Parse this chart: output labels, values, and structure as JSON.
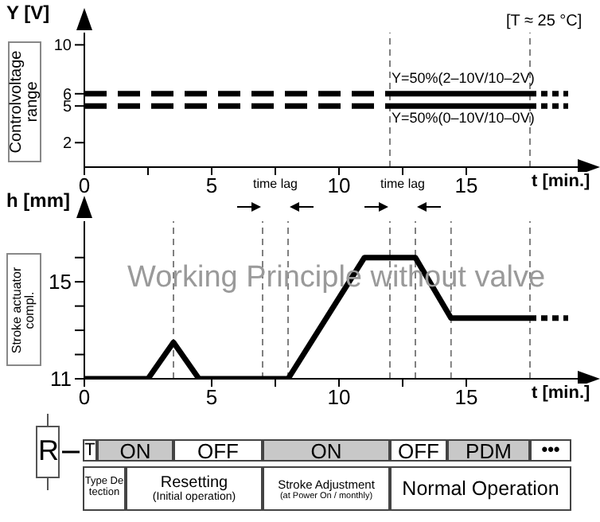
{
  "chart_data": [
    {
      "type": "line",
      "xlabel": "t [min.]",
      "ylabel": "Y [V]",
      "annotations": [
        "[T ≈ 25 °C]",
        "Controlvoltage range",
        "Y=50%(2–10V/10–2V)",
        "Y=50%(0–10V/10–0V)"
      ],
      "xlim": [
        0,
        19.5
      ],
      "xticks": [
        0,
        {
          "value": 2.5,
          "label": null
        },
        5,
        {
          "value": 7.5,
          "label": null
        },
        10,
        {
          "value": 12.5,
          "label": null
        },
        15
      ],
      "ylim": [
        0,
        11
      ],
      "yticks": [
        2,
        5,
        6,
        10
      ],
      "ref_lines": [
        {
          "axis": "x",
          "value": 12,
          "color": "#808080",
          "line_style": "dotted"
        },
        {
          "axis": "x",
          "value": 17.5,
          "color": "#808080",
          "line_style": "dotted"
        }
      ],
      "series": [
        {
          "color": "#000000",
          "line_style": "dashed",
          "x": [
            0,
            12
          ],
          "values": [
            6,
            6
          ]
        },
        {
          "color": "#000000",
          "line_style": "solid",
          "x": [
            12,
            17.5
          ],
          "values": [
            6,
            6
          ]
        },
        {
          "color": "#000000",
          "line_style": "dotted",
          "x": [
            17.5,
            19
          ],
          "values": [
            6,
            6
          ]
        },
        {
          "color": "#000000",
          "line_style": "dashed",
          "x": [
            0,
            12
          ],
          "values": [
            5,
            5
          ]
        },
        {
          "color": "#000000",
          "line_style": "solid",
          "x": [
            12,
            17.5
          ],
          "values": [
            5,
            5
          ]
        },
        {
          "color": "#000000",
          "line_style": "dotted",
          "x": [
            17.5,
            19
          ],
          "values": [
            5,
            5
          ]
        }
      ]
    },
    {
      "type": "line",
      "title": "Working Principle without valve",
      "xlabel": "t [min.]",
      "ylabel": "h [mm]",
      "annotations": [
        "Stroke actuator compl.",
        "time lag",
        "time lag",
        "R",
        "T",
        "ON",
        "OFF",
        "ON",
        "OFF",
        "PDM",
        "•••",
        "Type Detection",
        "Resetting",
        "(Initial operation)",
        "Stroke Adjustment",
        "(at Power On / monthly)",
        "Normal Operation"
      ],
      "xlim": [
        0,
        19.5
      ],
      "xticks": [
        0,
        5,
        {
          "value": 7.5,
          "label": null
        },
        10,
        {
          "value": 12.5,
          "label": null
        },
        15
      ],
      "ylim": [
        11,
        17.5
      ],
      "yticks": [
        11,
        {
          "value": 12,
          "label": null
        },
        {
          "value": 13,
          "label": null
        },
        {
          "value": 14,
          "label": null
        },
        15,
        {
          "value": 16,
          "label": null
        }
      ],
      "ref_lines": [
        {
          "axis": "x",
          "value": 3.5,
          "color": "#808080",
          "line_style": "dotted"
        },
        {
          "axis": "x",
          "value": 7,
          "color": "#808080",
          "line_style": "dotted"
        },
        {
          "axis": "x",
          "value": 8,
          "color": "#808080",
          "line_style": "dotted"
        },
        {
          "axis": "x",
          "value": 12,
          "color": "#808080",
          "line_style": "dotted"
        },
        {
          "axis": "x",
          "value": 13,
          "color": "#808080",
          "line_style": "dotted"
        },
        {
          "axis": "x",
          "value": 14.4,
          "color": "#808080",
          "line_style": "dotted"
        },
        {
          "axis": "x",
          "value": 17.5,
          "color": "#808080",
          "line_style": "dotted"
        }
      ],
      "series": [
        {
          "color": "#000000",
          "line_style": "solid",
          "x": [
            0,
            2.5,
            3.5,
            4.5,
            8,
            11,
            13,
            14.4,
            17.5
          ],
          "values": [
            11,
            11,
            12.5,
            11,
            11,
            16,
            16,
            13.5,
            13.5
          ]
        },
        {
          "color": "#000000",
          "line_style": "dotted",
          "x": [
            17.5,
            19
          ],
          "values": [
            13.5,
            13.5
          ]
        }
      ]
    }
  ]
}
